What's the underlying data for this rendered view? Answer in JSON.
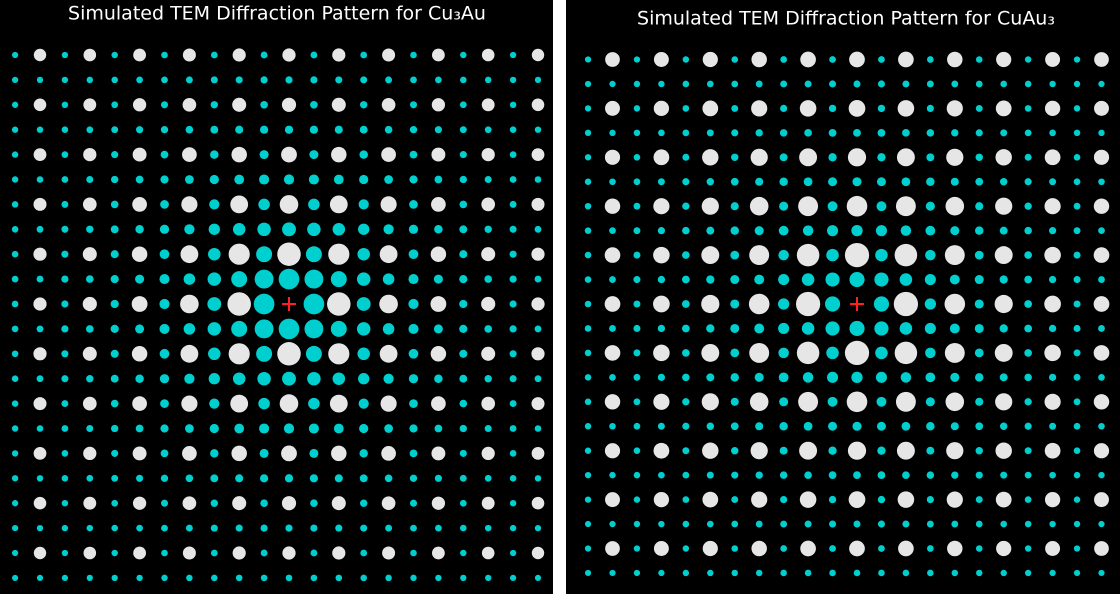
{
  "panels": [
    {
      "title": "Simulated TEM Diffraction Pattern for Cu₃Au"
    },
    {
      "title": "Simulated TEM Diffraction Pattern for CuAu₃"
    }
  ]
}
